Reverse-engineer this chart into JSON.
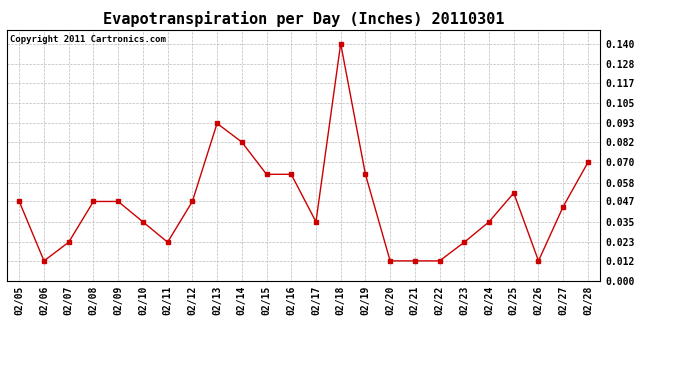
{
  "title": "Evapotranspiration per Day (Inches) 20110301",
  "copyright": "Copyright 2011 Cartronics.com",
  "dates": [
    "02/05",
    "02/06",
    "02/07",
    "02/08",
    "02/09",
    "02/10",
    "02/11",
    "02/12",
    "02/13",
    "02/14",
    "02/15",
    "02/16",
    "02/17",
    "02/18",
    "02/19",
    "02/20",
    "02/21",
    "02/22",
    "02/23",
    "02/24",
    "02/25",
    "02/26",
    "02/27",
    "02/28"
  ],
  "values": [
    0.047,
    0.012,
    0.023,
    0.047,
    0.047,
    0.035,
    0.023,
    0.047,
    0.093,
    0.082,
    0.063,
    0.063,
    0.035,
    0.14,
    0.063,
    0.012,
    0.012,
    0.012,
    0.023,
    0.035,
    0.052,
    0.012,
    0.044,
    0.07
  ],
  "yticks": [
    0.0,
    0.012,
    0.023,
    0.035,
    0.047,
    0.058,
    0.07,
    0.082,
    0.093,
    0.105,
    0.117,
    0.128,
    0.14
  ],
  "ylim": [
    0.0,
    0.148
  ],
  "line_color": "#cc0000",
  "marker": "s",
  "marker_size": 3,
  "bg_color": "#ffffff",
  "grid_color": "#bbbbbb",
  "title_fontsize": 11,
  "copyright_fontsize": 6.5,
  "tick_fontsize": 7,
  "ytick_fontsize": 7
}
